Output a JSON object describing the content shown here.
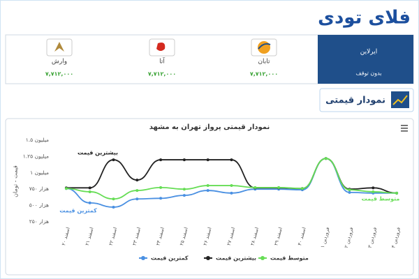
{
  "header": {
    "logo": "فلای تودی"
  },
  "flights": {
    "headers": [
      "ایرلاین",
      "بدون توقف"
    ],
    "airlines": [
      {
        "name": "تابان",
        "price": "۷,۷۱۲,۰۰۰"
      },
      {
        "name": "آتا",
        "price": "۷,۷۱۲,۰۰۰"
      },
      {
        "name": "وارش",
        "price": "۷,۷۱۲,۰۰۰"
      }
    ]
  },
  "section_title": "نمودار قیمتی",
  "chart_data": {
    "type": "line",
    "title": "نمودار قیمتی پرواز تهران به مشهد",
    "ylabel": "قیمت - تومان",
    "categories": [
      "اسفند ۲۰",
      "اسفند ۲۱",
      "اسفند ۲۲",
      "اسفند ۲۳",
      "اسفند ۲۴",
      "اسفند ۲۵",
      "اسفند ۲۶",
      "اسفند ۲۷",
      "اسفند ۲۸",
      "اسفند ۲۹",
      "اسفند ۳۰",
      "فروردین ۱",
      "فروردین ۲",
      "فروردین ۳",
      "فروردین ۴"
    ],
    "series": [
      {
        "name": "کمترین قیمت",
        "color": "#4a90e2",
        "values": [
          760000,
          540000,
          475000,
          600000,
          610000,
          655000,
          730000,
          690000,
          750000,
          750000,
          740000,
          1220000,
          700000,
          690000,
          690000
        ]
      },
      {
        "name": "بیشترین قیمت",
        "color": "#222222",
        "values": [
          770000,
          770000,
          1200000,
          890000,
          1200000,
          1200000,
          1200000,
          1200000,
          770000,
          770000,
          760000,
          1220000,
          750000,
          770000,
          690000
        ]
      },
      {
        "name": "متوسط قیمت",
        "color": "#66dd55",
        "values": [
          760000,
          710000,
          600000,
          730000,
          775000,
          750000,
          805000,
          805000,
          775000,
          775000,
          760000,
          1220000,
          740000,
          710000,
          690000
        ]
      }
    ],
    "ylim": [
      250000,
      1500000
    ],
    "yticks": [
      {
        "value": 250000,
        "label": "۲۵۰ هزار"
      },
      {
        "value": 500000,
        "label": "۵۰۰ هزار"
      },
      {
        "value": 750000,
        "label": "۷۵۰ هزار"
      },
      {
        "value": 1000000,
        "label": "۱ میلیون"
      },
      {
        "value": 1250000,
        "label": "۱.۲۵ میلیون"
      },
      {
        "value": 1500000,
        "label": "۱.۵ میلیون"
      }
    ],
    "grid": false,
    "legend": "bottom"
  }
}
